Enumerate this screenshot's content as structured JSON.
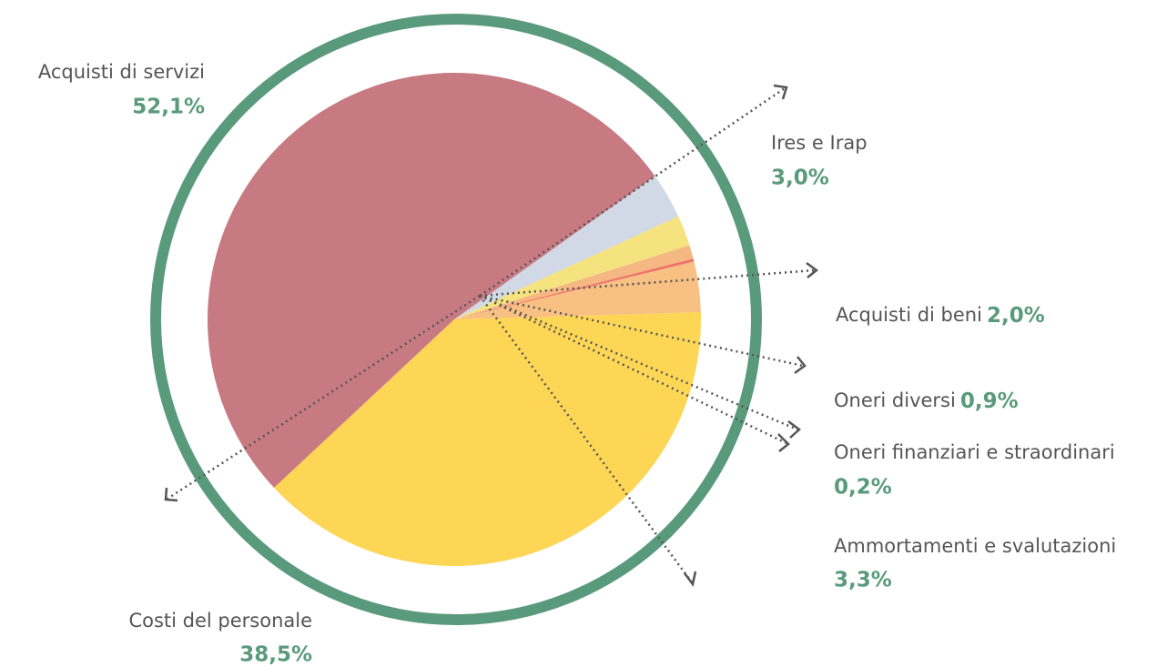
{
  "chart_data": {
    "type": "pie",
    "categories": [
      "Ires e Irap",
      "Acquisti di beni",
      "Oneri diversi",
      "Oneri finanziari e straordinari",
      "Ammortamenti e svalutazioni",
      "Costi del personale",
      "Acquisti di servizi"
    ],
    "values": [
      3.0,
      2.0,
      0.9,
      0.2,
      3.3,
      38.5,
      52.1
    ],
    "value_labels": [
      "3,0%",
      "2,0%",
      "0,9%",
      "0,2%",
      "3,3%",
      "38,5%",
      "52,1%"
    ],
    "colors": [
      "#d2d9e6",
      "#f5e37f",
      "#f6b882",
      "#f0736a",
      "#f8c083",
      "#fdd655",
      "#c77a82"
    ]
  }
}
